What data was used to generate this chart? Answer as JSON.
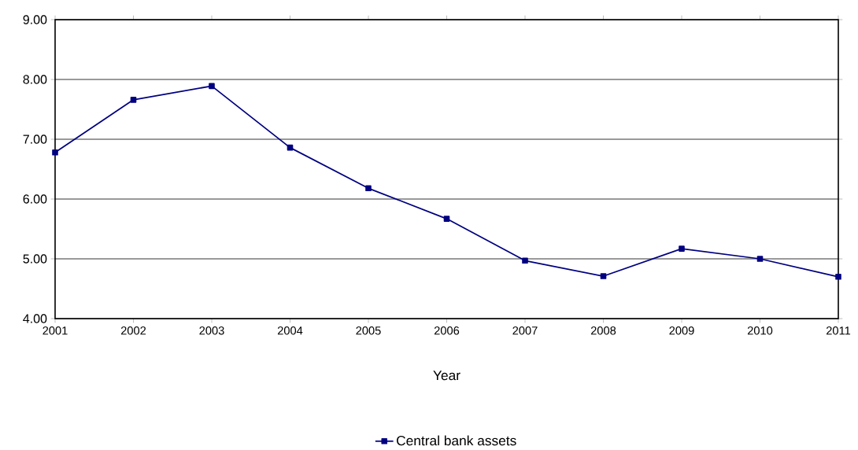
{
  "chart_data": {
    "type": "line",
    "xlabel": "Year",
    "x": [
      2001,
      2002,
      2003,
      2004,
      2005,
      2006,
      2007,
      2008,
      2009,
      2010,
      2011
    ],
    "series": [
      {
        "name": "Central bank assets",
        "color": "#000080",
        "values": [
          6.78,
          7.66,
          7.89,
          6.86,
          6.18,
          5.67,
          4.97,
          4.71,
          5.17,
          5.0,
          4.7
        ]
      }
    ],
    "xlim": [
      2001,
      2011
    ],
    "xticks": [
      2001,
      2002,
      2003,
      2004,
      2005,
      2006,
      2007,
      2008,
      2009,
      2010,
      2011
    ],
    "ylim": [
      4,
      9
    ],
    "yticks": [
      {
        "value": 4,
        "label": "4.00"
      },
      {
        "value": 5,
        "label": "5.00"
      },
      {
        "value": 6,
        "label": "6.00"
      },
      {
        "value": 7,
        "label": "7.00"
      },
      {
        "value": 8,
        "label": "8.00"
      },
      {
        "value": 9,
        "label": "9.00"
      }
    ],
    "grid": "y",
    "legend": "bottom",
    "marker": "square",
    "line_style": "solid"
  }
}
